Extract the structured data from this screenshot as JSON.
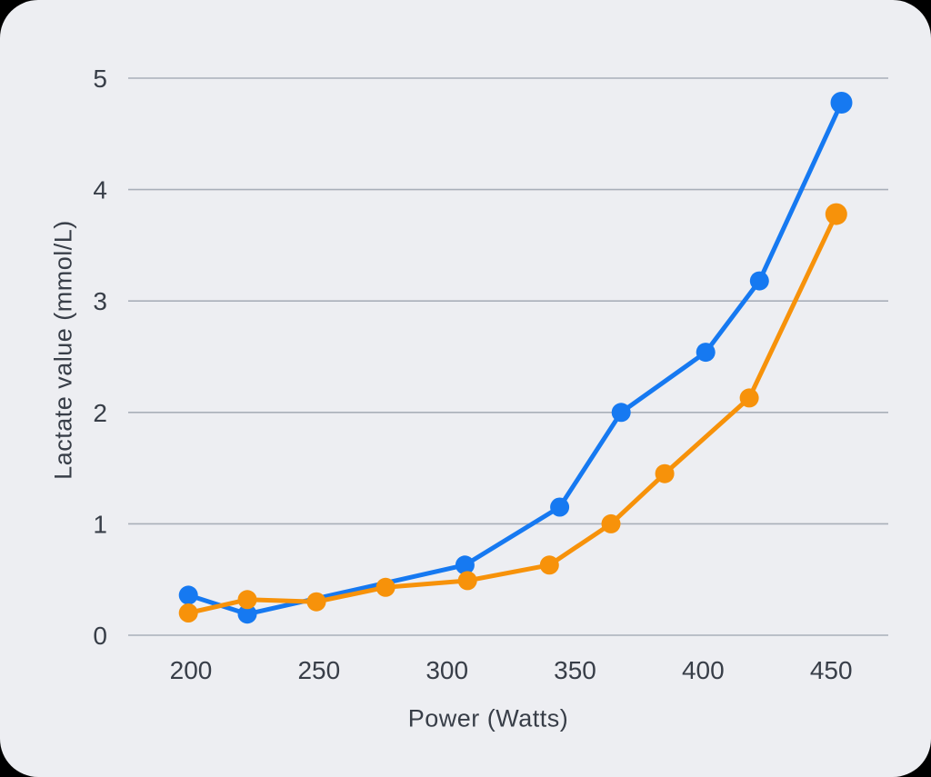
{
  "chart_data": {
    "type": "line",
    "title": "",
    "xlabel": "Power (Watts)",
    "ylabel": "Lactate value (mmol/L)",
    "x_ticks": [
      200,
      250,
      300,
      350,
      400,
      450
    ],
    "y_ticks": [
      0,
      1,
      2,
      3,
      4,
      5
    ],
    "xlim": [
      175.5,
      472.3
    ],
    "ylim": [
      0,
      5
    ],
    "grid": "horizontal-only",
    "legend": "none",
    "series": [
      {
        "name": "blue-series",
        "color": "#1679F1",
        "points": [
          {
            "x": 199,
            "y": 0.36
          },
          {
            "x": 222,
            "y": 0.19
          },
          {
            "x": 307,
            "y": 0.63
          },
          {
            "x": 344,
            "y": 1.15
          },
          {
            "x": 368,
            "y": 2.0
          },
          {
            "x": 401,
            "y": 2.54
          },
          {
            "x": 422,
            "y": 3.18
          },
          {
            "x": 454,
            "y": 4.78
          }
        ]
      },
      {
        "name": "orange-series",
        "color": "#F7920A",
        "points": [
          {
            "x": 199,
            "y": 0.2
          },
          {
            "x": 222,
            "y": 0.32
          },
          {
            "x": 249,
            "y": 0.3
          },
          {
            "x": 276,
            "y": 0.43
          },
          {
            "x": 308,
            "y": 0.49
          },
          {
            "x": 340,
            "y": 0.63
          },
          {
            "x": 364,
            "y": 1.0
          },
          {
            "x": 385,
            "y": 1.45
          },
          {
            "x": 418,
            "y": 2.13
          },
          {
            "x": 452,
            "y": 3.78
          }
        ]
      }
    ],
    "colors": {
      "background": "#EDEEF2",
      "outside": "#000000",
      "gridline": "#A9AFB9",
      "text": "#383E48"
    }
  }
}
